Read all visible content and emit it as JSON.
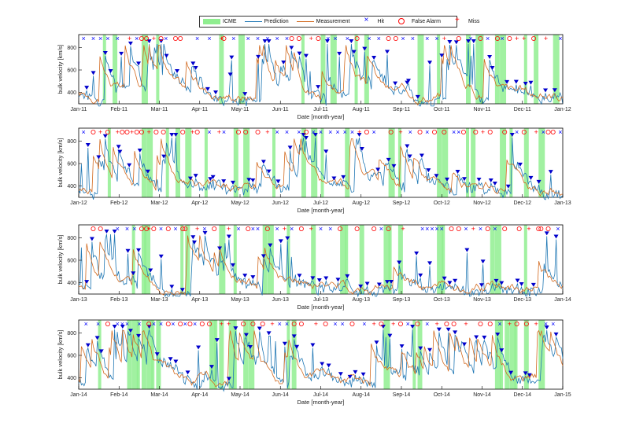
{
  "legend": {
    "items": [
      {
        "label": "ICME",
        "kind": "patch",
        "color": "#90ee90"
      },
      {
        "label": "Prediction",
        "kind": "line",
        "color": "#1f77b4"
      },
      {
        "label": "Measurement",
        "kind": "line",
        "color": "#d2691e"
      },
      {
        "label": "Hit",
        "kind": "x",
        "color": "#0000ff"
      },
      {
        "label": "False Alarm",
        "kind": "o",
        "color": "#ff0000"
      },
      {
        "label": "Miss",
        "kind": "+",
        "color": "#ff0000"
      }
    ]
  },
  "chart_data": [
    {
      "type": "line",
      "ylabel": "bulk velocity [km/s]",
      "xlabel": "Date [month-year]",
      "ylim": [
        250,
        900
      ],
      "yticks": [
        400,
        600,
        800
      ],
      "xticks": [
        "Jan-11",
        "Feb-11",
        "Mar-11",
        "Apr-11",
        "May-11",
        "Jun-11",
        "Jul-11",
        "Aug-11",
        "Sep-11",
        "Oct-11",
        "Nov-11",
        "Dec-11",
        "Jan-12"
      ],
      "icme_positions": [
        0.05,
        0.07,
        0.13,
        0.16,
        0.29,
        0.33,
        0.46,
        0.5,
        0.52,
        0.57,
        0.59,
        0.7,
        0.74,
        0.8,
        0.82,
        0.83,
        0.86,
        0.87,
        0.92,
        0.94,
        0.98
      ],
      "events": [
        {
          "x": 0.01,
          "type": "x"
        },
        {
          "x": 0.03,
          "type": "x"
        },
        {
          "x": 0.045,
          "type": "x"
        },
        {
          "x": 0.06,
          "type": "x"
        },
        {
          "x": 0.08,
          "type": "x"
        },
        {
          "x": 0.105,
          "type": "+"
        },
        {
          "x": 0.12,
          "type": "x"
        },
        {
          "x": 0.13,
          "type": "o"
        },
        {
          "x": 0.14,
          "type": "o"
        },
        {
          "x": 0.155,
          "type": "+"
        },
        {
          "x": 0.17,
          "type": "o"
        },
        {
          "x": 0.18,
          "type": "x"
        },
        {
          "x": 0.2,
          "type": "o"
        },
        {
          "x": 0.21,
          "type": "o"
        },
        {
          "x": 0.245,
          "type": "x"
        },
        {
          "x": 0.27,
          "type": "x"
        },
        {
          "x": 0.295,
          "type": "+"
        },
        {
          "x": 0.3,
          "type": "o"
        },
        {
          "x": 0.32,
          "type": "x"
        },
        {
          "x": 0.35,
          "type": "x"
        },
        {
          "x": 0.37,
          "type": "x"
        },
        {
          "x": 0.39,
          "type": "x"
        },
        {
          "x": 0.41,
          "type": "x"
        },
        {
          "x": 0.43,
          "type": "x"
        },
        {
          "x": 0.44,
          "type": "o"
        },
        {
          "x": 0.455,
          "type": "o"
        },
        {
          "x": 0.48,
          "type": "+"
        },
        {
          "x": 0.495,
          "type": "o"
        },
        {
          "x": 0.515,
          "type": "x"
        },
        {
          "x": 0.53,
          "type": "x"
        },
        {
          "x": 0.555,
          "type": "x"
        },
        {
          "x": 0.575,
          "type": "o"
        },
        {
          "x": 0.6,
          "type": "x"
        },
        {
          "x": 0.62,
          "type": "x"
        },
        {
          "x": 0.64,
          "type": "o"
        },
        {
          "x": 0.655,
          "type": "o"
        },
        {
          "x": 0.67,
          "type": "x"
        },
        {
          "x": 0.69,
          "type": "x"
        },
        {
          "x": 0.72,
          "type": "x"
        },
        {
          "x": 0.74,
          "type": "x"
        },
        {
          "x": 0.755,
          "type": "+"
        },
        {
          "x": 0.785,
          "type": "o"
        },
        {
          "x": 0.81,
          "type": "x"
        },
        {
          "x": 0.83,
          "type": "o"
        },
        {
          "x": 0.845,
          "type": "x"
        },
        {
          "x": 0.865,
          "type": "o"
        },
        {
          "x": 0.875,
          "type": "x"
        },
        {
          "x": 0.89,
          "type": "o"
        },
        {
          "x": 0.905,
          "type": "+"
        },
        {
          "x": 0.92,
          "type": "+"
        },
        {
          "x": 0.94,
          "type": "o"
        },
        {
          "x": 0.965,
          "type": "+"
        },
        {
          "x": 0.995,
          "type": "x"
        }
      ]
    },
    {
      "type": "line",
      "ylabel": "bulk velocity [km/s]",
      "xlabel": "Date [month-year]",
      "ylim": [
        250,
        900
      ],
      "yticks": [
        400,
        600,
        800
      ],
      "xticks": [
        "Jan-12",
        "Feb-12",
        "Mar-12",
        "Apr-12",
        "May-12",
        "Jun-12",
        "Jul-12",
        "Aug-12",
        "Sep-12",
        "Oct-12",
        "Nov-12",
        "Dec-12",
        "Jan-13"
      ],
      "icme_positions": [
        0.06,
        0.13,
        0.14,
        0.18,
        0.2,
        0.22,
        0.26,
        0.32,
        0.34,
        0.4,
        0.46,
        0.48,
        0.5,
        0.55,
        0.64,
        0.66,
        0.74,
        0.75,
        0.8,
        0.81,
        0.87,
        0.89,
        0.92,
        0.95
      ],
      "events": [
        {
          "x": 0.01,
          "type": "x"
        },
        {
          "x": 0.03,
          "type": "o"
        },
        {
          "x": 0.045,
          "type": "+"
        },
        {
          "x": 0.06,
          "type": "o"
        },
        {
          "x": 0.08,
          "type": "+"
        },
        {
          "x": 0.09,
          "type": "o"
        },
        {
          "x": 0.1,
          "type": "o"
        },
        {
          "x": 0.11,
          "type": "+"
        },
        {
          "x": 0.12,
          "type": "o"
        },
        {
          "x": 0.13,
          "type": "o"
        },
        {
          "x": 0.145,
          "type": "+"
        },
        {
          "x": 0.16,
          "type": "o"
        },
        {
          "x": 0.175,
          "type": "o"
        },
        {
          "x": 0.215,
          "type": "o"
        },
        {
          "x": 0.235,
          "type": "+"
        },
        {
          "x": 0.245,
          "type": "o"
        },
        {
          "x": 0.27,
          "type": "x"
        },
        {
          "x": 0.29,
          "type": "+"
        },
        {
          "x": 0.3,
          "type": "x"
        },
        {
          "x": 0.33,
          "type": "o"
        },
        {
          "x": 0.345,
          "type": "o"
        },
        {
          "x": 0.37,
          "type": "o"
        },
        {
          "x": 0.39,
          "type": "+"
        },
        {
          "x": 0.41,
          "type": "x"
        },
        {
          "x": 0.43,
          "type": "x"
        },
        {
          "x": 0.455,
          "type": "x"
        },
        {
          "x": 0.47,
          "type": "o"
        },
        {
          "x": 0.485,
          "type": "x"
        },
        {
          "x": 0.5,
          "type": "x"
        },
        {
          "x": 0.52,
          "type": "x"
        },
        {
          "x": 0.535,
          "type": "x"
        },
        {
          "x": 0.55,
          "type": "x"
        },
        {
          "x": 0.565,
          "type": "x"
        },
        {
          "x": 0.58,
          "type": "+"
        },
        {
          "x": 0.595,
          "type": "o"
        },
        {
          "x": 0.61,
          "type": "x"
        },
        {
          "x": 0.645,
          "type": "o"
        },
        {
          "x": 0.665,
          "type": "+"
        },
        {
          "x": 0.685,
          "type": "x"
        },
        {
          "x": 0.705,
          "type": "o"
        },
        {
          "x": 0.72,
          "type": "x"
        },
        {
          "x": 0.735,
          "type": "o"
        },
        {
          "x": 0.755,
          "type": "o"
        },
        {
          "x": 0.775,
          "type": "x"
        },
        {
          "x": 0.785,
          "type": "x"
        },
        {
          "x": 0.795,
          "type": "o"
        },
        {
          "x": 0.82,
          "type": "o"
        },
        {
          "x": 0.835,
          "type": "+"
        },
        {
          "x": 0.85,
          "type": "o"
        },
        {
          "x": 0.88,
          "type": "o"
        },
        {
          "x": 0.905,
          "type": "x"
        },
        {
          "x": 0.92,
          "type": "o"
        },
        {
          "x": 0.945,
          "type": "+"
        },
        {
          "x": 0.96,
          "type": "x"
        },
        {
          "x": 0.97,
          "type": "o"
        },
        {
          "x": 0.98,
          "type": "o"
        },
        {
          "x": 0.995,
          "type": "x"
        }
      ]
    },
    {
      "type": "line",
      "ylabel": "bulk velocity [km/s]",
      "xlabel": "Date [month-year]",
      "ylim": [
        250,
        900
      ],
      "yticks": [
        400,
        600,
        800
      ],
      "xticks": [
        "Jan-13",
        "Feb-13",
        "Mar-13",
        "Apr-13",
        "May-13",
        "Jun-13",
        "Jul-13",
        "Aug-13",
        "Sep-13",
        "Oct-13",
        "Nov-13",
        "Dec-13",
        "Jan-14"
      ],
      "icme_positions": [
        0.11,
        0.13,
        0.135,
        0.21,
        0.22,
        0.29,
        0.32,
        0.38,
        0.39,
        0.43,
        0.48,
        0.54,
        0.55,
        0.58,
        0.63,
        0.64,
        0.66,
        0.74,
        0.75,
        0.85,
        0.86,
        0.92
      ],
      "events": [
        {
          "x": 0.03,
          "type": "o"
        },
        {
          "x": 0.045,
          "type": "o"
        },
        {
          "x": 0.08,
          "type": "x"
        },
        {
          "x": 0.1,
          "type": "x"
        },
        {
          "x": 0.115,
          "type": "x"
        },
        {
          "x": 0.13,
          "type": "o"
        },
        {
          "x": 0.14,
          "type": "o"
        },
        {
          "x": 0.145,
          "type": "+"
        },
        {
          "x": 0.155,
          "type": "o"
        },
        {
          "x": 0.17,
          "type": "x"
        },
        {
          "x": 0.185,
          "type": "o"
        },
        {
          "x": 0.2,
          "type": "x"
        },
        {
          "x": 0.215,
          "type": "o"
        },
        {
          "x": 0.22,
          "type": "o"
        },
        {
          "x": 0.245,
          "type": "+"
        },
        {
          "x": 0.26,
          "type": "x"
        },
        {
          "x": 0.28,
          "type": "o"
        },
        {
          "x": 0.31,
          "type": "+"
        },
        {
          "x": 0.33,
          "type": "x"
        },
        {
          "x": 0.35,
          "type": "o"
        },
        {
          "x": 0.36,
          "type": "x"
        },
        {
          "x": 0.37,
          "type": "x"
        },
        {
          "x": 0.39,
          "type": "o"
        },
        {
          "x": 0.41,
          "type": "x"
        },
        {
          "x": 0.425,
          "type": "+"
        },
        {
          "x": 0.44,
          "type": "x"
        },
        {
          "x": 0.46,
          "type": "o"
        },
        {
          "x": 0.48,
          "type": "+"
        },
        {
          "x": 0.5,
          "type": "x"
        },
        {
          "x": 0.52,
          "type": "x"
        },
        {
          "x": 0.54,
          "type": "o"
        },
        {
          "x": 0.575,
          "type": "o"
        },
        {
          "x": 0.61,
          "type": "o"
        },
        {
          "x": 0.625,
          "type": "x"
        },
        {
          "x": 0.64,
          "type": "o"
        },
        {
          "x": 0.67,
          "type": "+"
        },
        {
          "x": 0.71,
          "type": "x"
        },
        {
          "x": 0.72,
          "type": "x"
        },
        {
          "x": 0.73,
          "type": "x"
        },
        {
          "x": 0.74,
          "type": "x"
        },
        {
          "x": 0.75,
          "type": "x"
        },
        {
          "x": 0.77,
          "type": "o"
        },
        {
          "x": 0.785,
          "type": "o"
        },
        {
          "x": 0.8,
          "type": "x"
        },
        {
          "x": 0.815,
          "type": "+"
        },
        {
          "x": 0.83,
          "type": "x"
        },
        {
          "x": 0.845,
          "type": "o"
        },
        {
          "x": 0.86,
          "type": "x"
        },
        {
          "x": 0.88,
          "type": "o"
        },
        {
          "x": 0.91,
          "type": "o"
        },
        {
          "x": 0.93,
          "type": "+"
        },
        {
          "x": 0.95,
          "type": "o"
        },
        {
          "x": 0.955,
          "type": "o"
        },
        {
          "x": 0.97,
          "type": "o"
        },
        {
          "x": 0.99,
          "type": "x"
        }
      ]
    },
    {
      "type": "line",
      "ylabel": "bulk velocity [km/s]",
      "xlabel": "Date [month-year]",
      "ylim": [
        250,
        900
      ],
      "yticks": [
        400,
        600,
        800
      ],
      "xticks": [
        "Jan-14",
        "Feb-14",
        "Mar-14",
        "Apr-14",
        "May-14",
        "Jun-14",
        "Jul-14",
        "Aug-14",
        "Sep-14",
        "Oct-14",
        "Nov-14",
        "Dec-14",
        "Jan-15"
      ],
      "icme_positions": [
        0.04,
        0.1,
        0.11,
        0.12,
        0.13,
        0.14,
        0.15,
        0.16,
        0.27,
        0.28,
        0.29,
        0.31,
        0.32,
        0.34,
        0.35,
        0.43,
        0.44,
        0.63,
        0.69,
        0.7,
        0.86,
        0.87,
        0.88,
        0.89,
        0.9,
        0.92,
        0.95
      ],
      "events": [
        {
          "x": 0.015,
          "type": "x"
        },
        {
          "x": 0.04,
          "type": "x"
        },
        {
          "x": 0.06,
          "type": "o"
        },
        {
          "x": 0.08,
          "type": "x"
        },
        {
          "x": 0.09,
          "type": "x"
        },
        {
          "x": 0.1,
          "type": "x"
        },
        {
          "x": 0.125,
          "type": "x"
        },
        {
          "x": 0.145,
          "type": "o"
        },
        {
          "x": 0.155,
          "type": "x"
        },
        {
          "x": 0.17,
          "type": "x"
        },
        {
          "x": 0.185,
          "type": "o"
        },
        {
          "x": 0.195,
          "type": "x"
        },
        {
          "x": 0.21,
          "type": "o"
        },
        {
          "x": 0.22,
          "type": "x"
        },
        {
          "x": 0.23,
          "type": "o"
        },
        {
          "x": 0.24,
          "type": "x"
        },
        {
          "x": 0.255,
          "type": "o"
        },
        {
          "x": 0.27,
          "type": "o"
        },
        {
          "x": 0.295,
          "type": "+"
        },
        {
          "x": 0.31,
          "type": "+"
        },
        {
          "x": 0.34,
          "type": "o"
        },
        {
          "x": 0.36,
          "type": "o"
        },
        {
          "x": 0.38,
          "type": "o"
        },
        {
          "x": 0.4,
          "type": "+"
        },
        {
          "x": 0.415,
          "type": "x"
        },
        {
          "x": 0.43,
          "type": "x"
        },
        {
          "x": 0.445,
          "type": "o"
        },
        {
          "x": 0.46,
          "type": "o"
        },
        {
          "x": 0.49,
          "type": "+"
        },
        {
          "x": 0.51,
          "type": "o"
        },
        {
          "x": 0.53,
          "type": "x"
        },
        {
          "x": 0.545,
          "type": "x"
        },
        {
          "x": 0.565,
          "type": "o"
        },
        {
          "x": 0.59,
          "type": "x"
        },
        {
          "x": 0.61,
          "type": "+"
        },
        {
          "x": 0.625,
          "type": "o"
        },
        {
          "x": 0.65,
          "type": "+"
        },
        {
          "x": 0.665,
          "type": "o"
        },
        {
          "x": 0.68,
          "type": "x"
        },
        {
          "x": 0.7,
          "type": "o"
        },
        {
          "x": 0.72,
          "type": "x"
        },
        {
          "x": 0.74,
          "type": "+"
        },
        {
          "x": 0.76,
          "type": "o"
        },
        {
          "x": 0.775,
          "type": "o"
        },
        {
          "x": 0.8,
          "type": "+"
        },
        {
          "x": 0.83,
          "type": "o"
        },
        {
          "x": 0.85,
          "type": "o"
        },
        {
          "x": 0.87,
          "type": "x"
        },
        {
          "x": 0.89,
          "type": "+"
        },
        {
          "x": 0.905,
          "type": "o"
        },
        {
          "x": 0.925,
          "type": "o"
        },
        {
          "x": 0.945,
          "type": "+"
        },
        {
          "x": 0.965,
          "type": "x"
        },
        {
          "x": 0.98,
          "type": "x"
        }
      ]
    }
  ]
}
